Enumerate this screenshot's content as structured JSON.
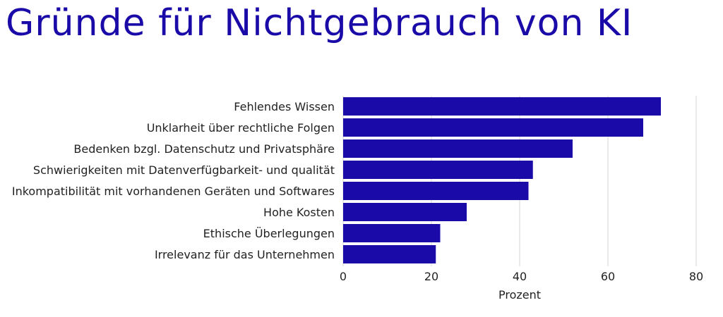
{
  "chart_data": {
    "type": "bar",
    "orientation": "horizontal",
    "title": "Gründe für Nichtgebrauch von KI",
    "xlabel": "Prozent",
    "ylabel": "",
    "categories": [
      "Fehlendes Wissen",
      "Unklarheit über rechtliche Folgen",
      "Bedenken bzgl. Datenschutz und Privatsphäre",
      "Schwierigkeiten mit Datenverfügbarkeit- und qualität",
      "Inkompatibilität mit vorhandenen Geräten und Softwares",
      "Hohe Kosten",
      "Ethische Überlegungen",
      "Irrelevanz für das Unternehmen"
    ],
    "values": [
      72,
      68,
      52,
      43,
      42,
      28,
      22,
      21
    ],
    "xlim": [
      0,
      80
    ],
    "xticks": [
      "0",
      "20",
      "40",
      "60",
      "80"
    ],
    "grid": "vertical",
    "legend": "none",
    "colors": {
      "bar": "#1a0aa8",
      "title": "#1a0aa8",
      "grid": "#d6d6d6",
      "text": "#222222"
    }
  }
}
